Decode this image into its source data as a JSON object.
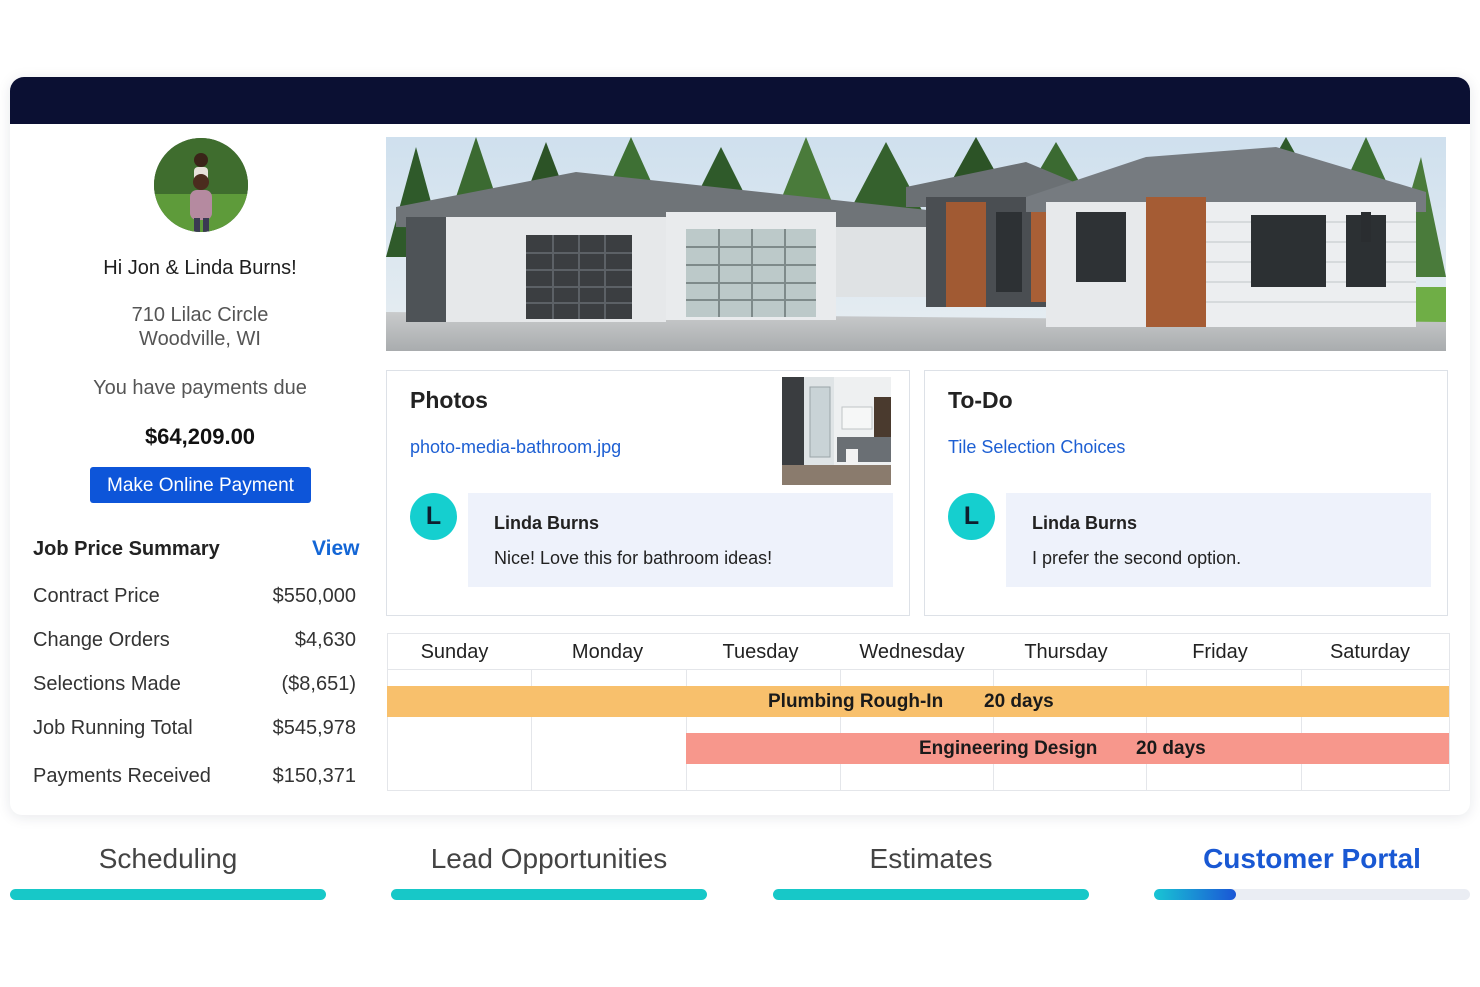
{
  "sidebar": {
    "greeting": "Hi Jon & Linda Burns!",
    "address_line1": "710 Lilac Circle",
    "address_line2": "Woodville, WI",
    "payments_due_label": "You have payments due",
    "payments_due_amount": "$64,209.00",
    "pay_button": "Make Online Payment",
    "summary_title": "Job Price Summary",
    "summary_view": "View",
    "summary_rows": [
      {
        "label": "Contract Price",
        "value": "$550,000"
      },
      {
        "label": "Change Orders",
        "value": "$4,630"
      },
      {
        "label": "Selections Made",
        "value": "($8,651)"
      },
      {
        "label": "Job Running Total",
        "value": "$545,978"
      },
      {
        "label": "Payments Received",
        "value": "$150,371"
      }
    ]
  },
  "photos_card": {
    "title": "Photos",
    "link": "photo-media-bathroom.jpg",
    "comment": {
      "initial": "L",
      "author": "Linda Burns",
      "text": "Nice! Love this for bathroom ideas!"
    }
  },
  "todo_card": {
    "title": "To-Do",
    "link": "Tile Selection Choices",
    "comment": {
      "initial": "L",
      "author": "Linda Burns",
      "text": "I prefer the second option."
    }
  },
  "calendar": {
    "days": [
      "Sunday",
      "Monday",
      "Tuesday",
      "Wednesday",
      "Thursday",
      "Friday",
      "Saturday"
    ],
    "events": [
      {
        "name": "Plumbing Rough-In",
        "duration": "20 days",
        "color": "#f8c06c"
      },
      {
        "name": "Engineering Design",
        "duration": "20 days",
        "color": "#f7978c"
      }
    ]
  },
  "tabs": [
    {
      "label": "Scheduling",
      "progress": 1.0
    },
    {
      "label": "Lead Opportunities",
      "progress": 1.0
    },
    {
      "label": "Estimates",
      "progress": 1.0
    },
    {
      "label": "Customer Portal",
      "progress": 0.26,
      "active": true
    }
  ],
  "colors": {
    "topbar": "#0b1033",
    "accent_blue": "#0d55d9",
    "teal": "#17c8c8",
    "avatar_teal": "#15cfcf"
  }
}
